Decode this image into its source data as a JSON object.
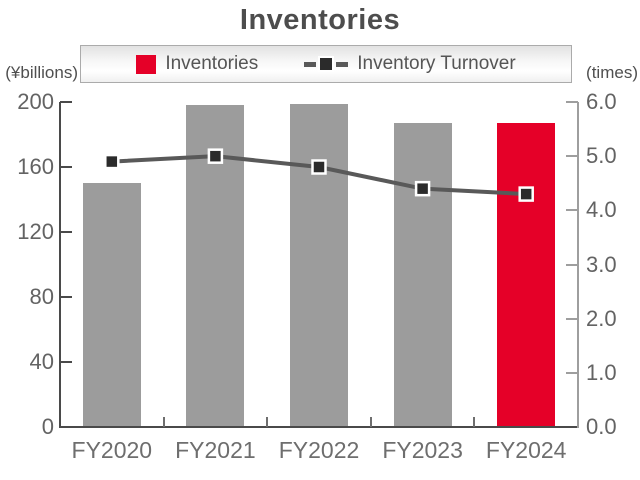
{
  "title": "Inventories",
  "axes": {
    "left_unit": "(¥billions)",
    "right_unit": "(times)"
  },
  "legend": {
    "inventories_label": "Inventories",
    "turnover_label": "Inventory Turnover"
  },
  "colors": {
    "bar_gray": "#9c9c9c",
    "bar_red": "#e50028",
    "line_gray": "#595959",
    "marker_dark": "#2b2b2b",
    "left_axis": "#4a4a4a",
    "right_axis": "#9e9e9e"
  },
  "chart_data": {
    "type": "bar",
    "subtype": "combo-bar-line",
    "title": "Inventories",
    "categories": [
      "FY2020",
      "FY2021",
      "FY2022",
      "FY2023",
      "FY2024"
    ],
    "series": [
      {
        "name": "Inventories",
        "type": "bar",
        "axis": "left",
        "unit": "¥billions",
        "values": [
          150,
          198,
          199,
          187,
          187
        ],
        "bar_colors": [
          "#9c9c9c",
          "#9c9c9c",
          "#9c9c9c",
          "#9c9c9c",
          "#e50028"
        ],
        "highlight_index": 4
      },
      {
        "name": "Inventory Turnover",
        "type": "line",
        "axis": "right",
        "unit": "times",
        "values": [
          4.9,
          5.0,
          4.8,
          4.4,
          4.3
        ],
        "line_color": "#595959",
        "marker": "square",
        "marker_color": "#2b2b2b"
      }
    ],
    "left_axis": {
      "label": "(¥billions)",
      "min": 0,
      "max": 200,
      "tick_interval": 40,
      "tick_labels": [
        "0",
        "40",
        "80",
        "120",
        "160",
        "200"
      ]
    },
    "right_axis": {
      "label": "(times)",
      "min": 0,
      "max": 6,
      "tick_interval": 1,
      "tick_labels": [
        "0.0",
        "1.0",
        "2.0",
        "3.0",
        "4.0",
        "5.0",
        "6.0"
      ]
    },
    "legend_position": "top",
    "grid": false
  }
}
